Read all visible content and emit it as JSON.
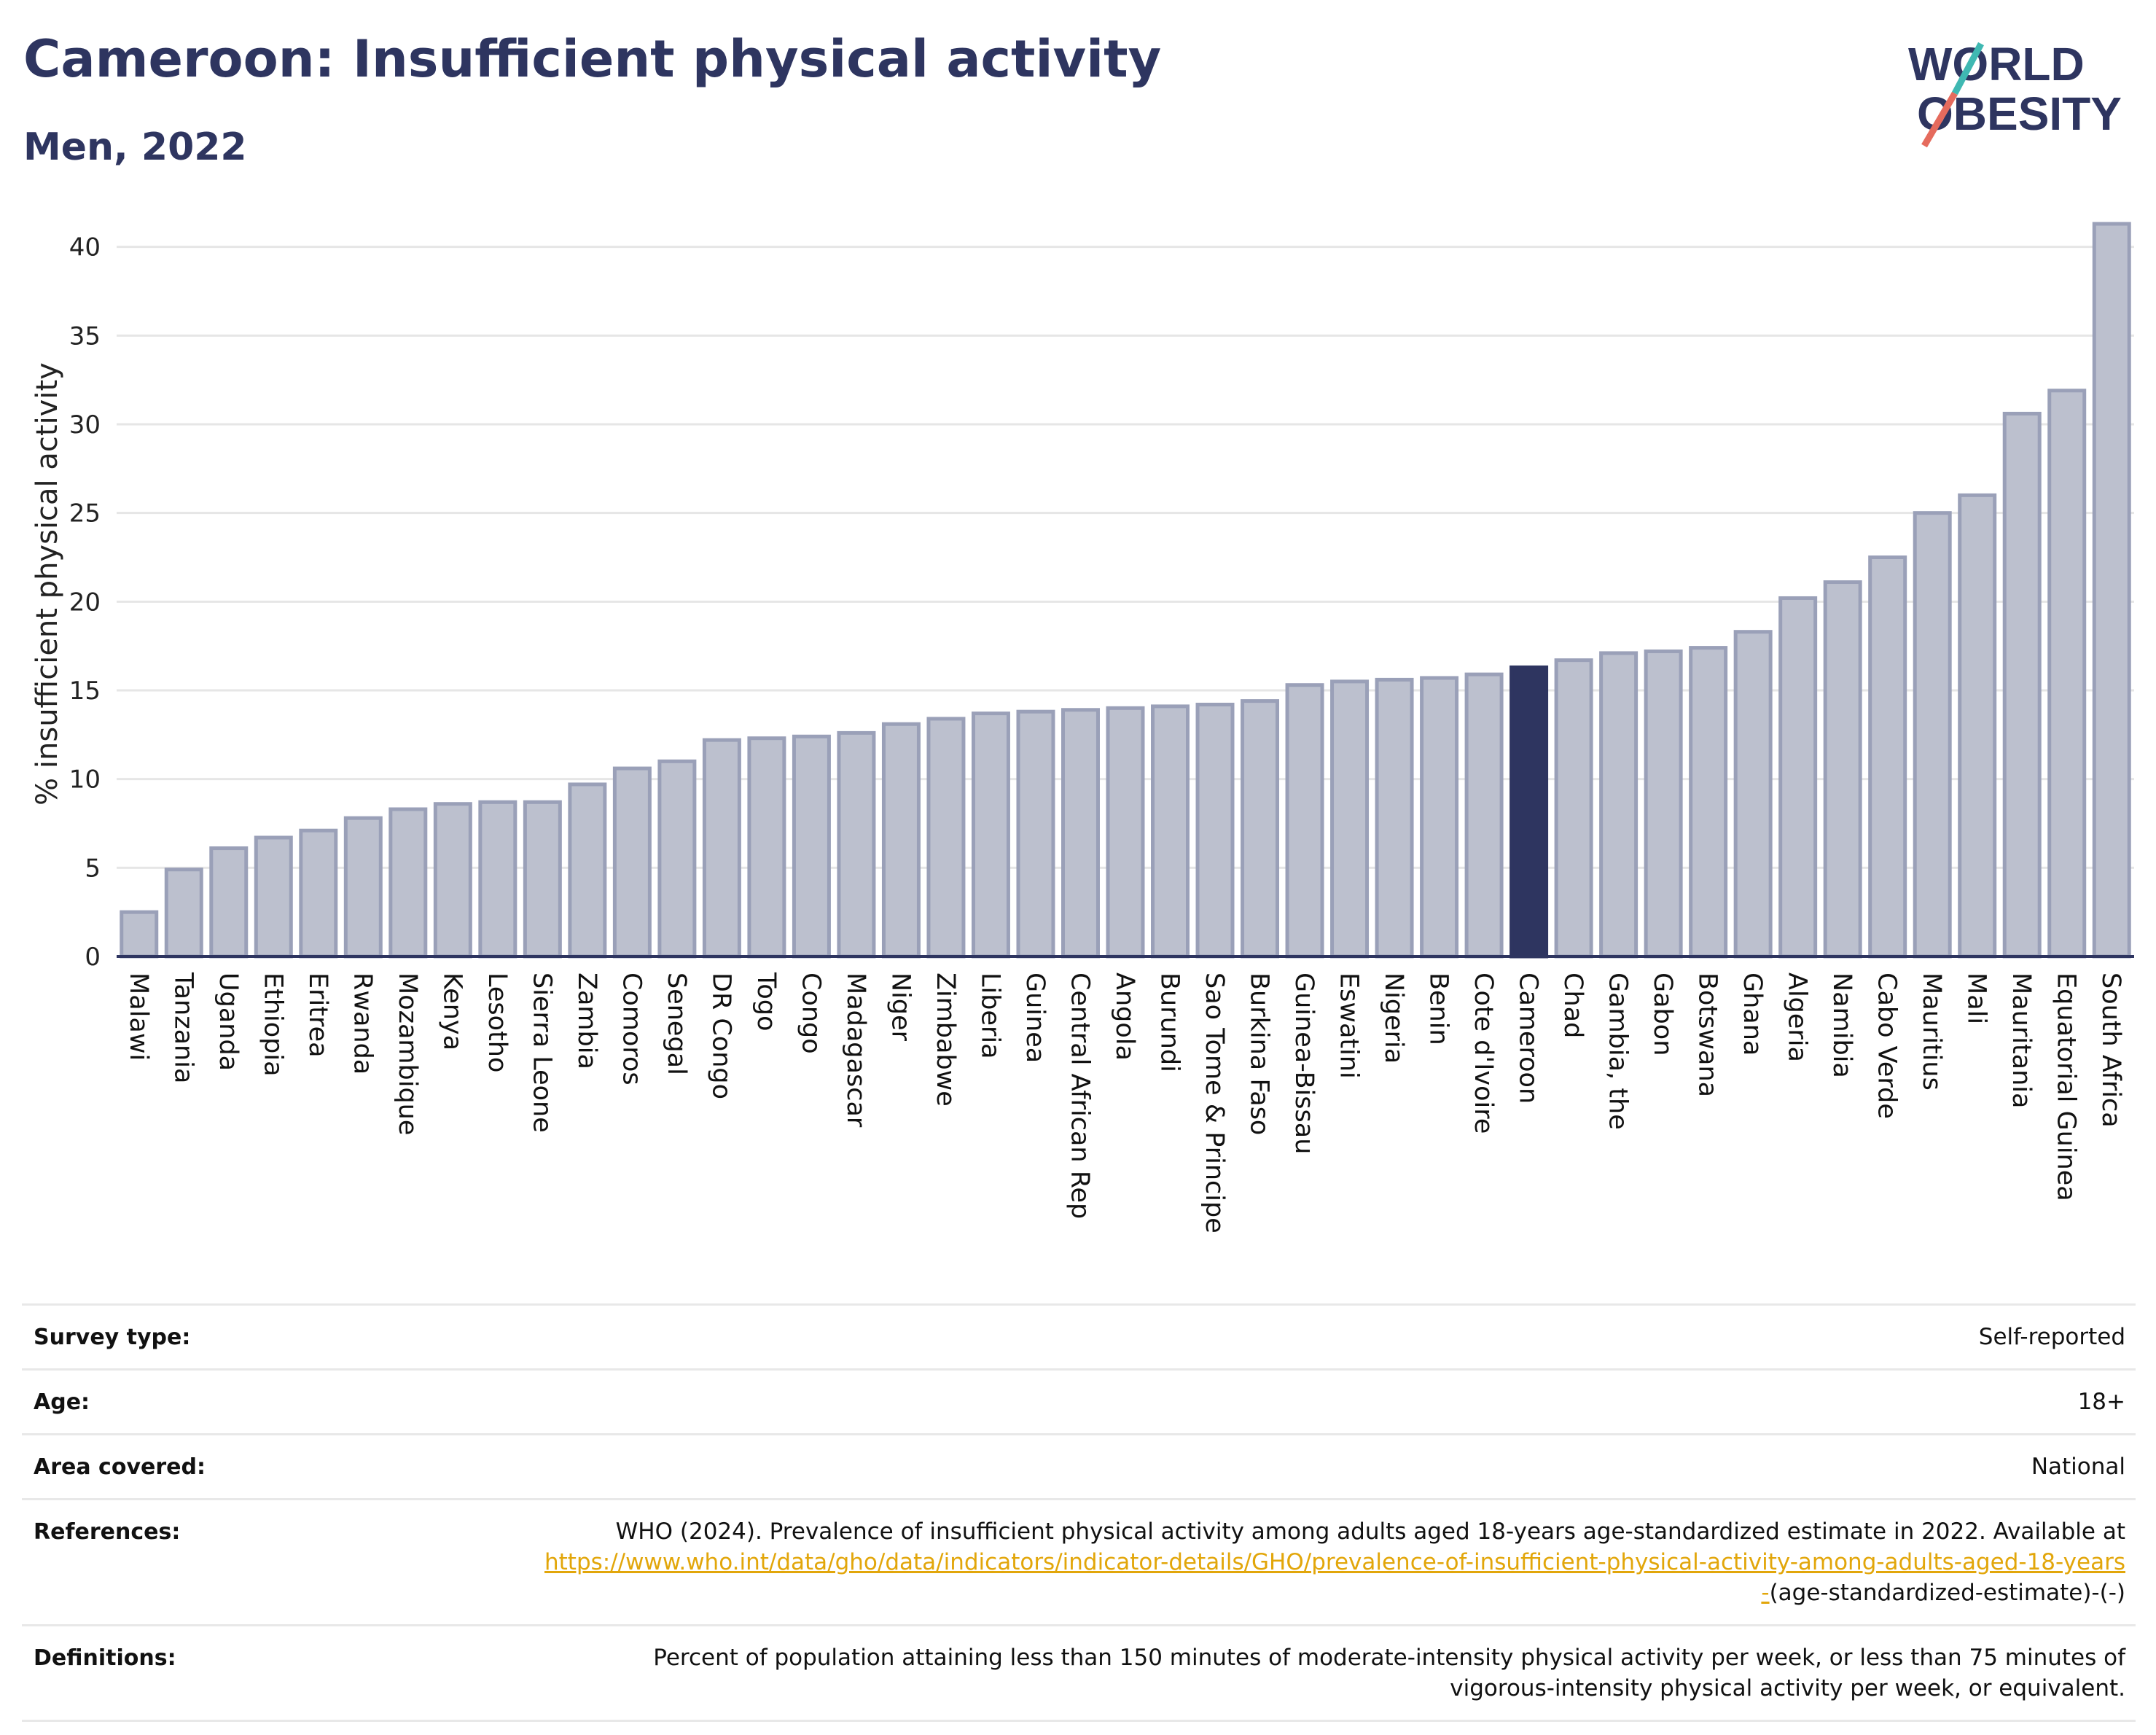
{
  "header": {
    "title": "Cameroon: Insufficient physical activity",
    "subtitle": "Men, 2022",
    "logo_line1": "WORLD",
    "logo_line2": "OBESITY"
  },
  "chart_data": {
    "type": "bar",
    "title": "Cameroon: Insufficient physical activity",
    "subtitle": "Men, 2022",
    "ylabel": "% insufficient physical activity",
    "xlabel": "",
    "ylim": [
      0,
      42
    ],
    "yticks": [
      0,
      5,
      10,
      15,
      20,
      25,
      30,
      35,
      40
    ],
    "grid": true,
    "highlight": "Cameroon",
    "colors": {
      "bar": "#bcc0ce",
      "bar_edge": "#9aa0b8",
      "highlight": "#2e3560",
      "axis": "#2e3560"
    },
    "categories": [
      "Malawi",
      "Tanzania",
      "Uganda",
      "Ethiopia",
      "Eritrea",
      "Rwanda",
      "Mozambique",
      "Kenya",
      "Lesotho",
      "Sierra Leone",
      "Zambia",
      "Comoros",
      "Senegal",
      "DR Congo",
      "Togo",
      "Congo",
      "Madagascar",
      "Niger",
      "Zimbabwe",
      "Liberia",
      "Guinea",
      "Central African Rep",
      "Angola",
      "Burundi",
      "Sao Tome & Principe",
      "Burkina Faso",
      "Guinea-Bissau",
      "Eswatini",
      "Nigeria",
      "Benin",
      "Cote d'Ivoire",
      "Cameroon",
      "Chad",
      "Gambia, the",
      "Gabon",
      "Botswana",
      "Ghana",
      "Algeria",
      "Namibia",
      "Cabo Verde",
      "Mauritius",
      "Mali",
      "Mauritania",
      "Equatorial Guinea",
      "South Africa"
    ],
    "values": [
      2.5,
      4.9,
      6.1,
      6.7,
      7.1,
      7.8,
      8.3,
      8.6,
      8.7,
      8.7,
      9.7,
      10.6,
      11.0,
      12.2,
      12.3,
      12.4,
      12.6,
      13.1,
      13.4,
      13.7,
      13.8,
      13.9,
      14.0,
      14.1,
      14.2,
      14.4,
      15.3,
      15.5,
      15.6,
      15.7,
      15.9,
      16.3,
      16.7,
      17.1,
      17.2,
      17.4,
      18.3,
      20.2,
      21.1,
      22.5,
      25.0,
      26.0,
      30.6,
      31.9,
      41.3
    ]
  },
  "metadata": {
    "rows": [
      {
        "label": "Survey type:",
        "value": "Self-reported"
      },
      {
        "label": "Age:",
        "value": "18+"
      },
      {
        "label": "Area covered:",
        "value": "National"
      }
    ],
    "references": {
      "label": "References:",
      "text": "WHO (2024). Prevalence of insufficient physical activity among adults aged 18-years age-standardized estimate in 2022. Available at",
      "link": "https://www.who.int/data/gho/data/indicators/indicator-details/GHO/prevalence-of-insufficient-physical-activity-among-adults-aged-18-years-",
      "suffix": "(age-standardized-estimate)-(-)"
    },
    "definitions": {
      "label": "Definitions:",
      "value": "Percent of population attaining less than 150 minutes of moderate-intensity physical activity per week, or less than 75 minutes of vigorous-intensity physical activity per week, or equivalent."
    }
  }
}
